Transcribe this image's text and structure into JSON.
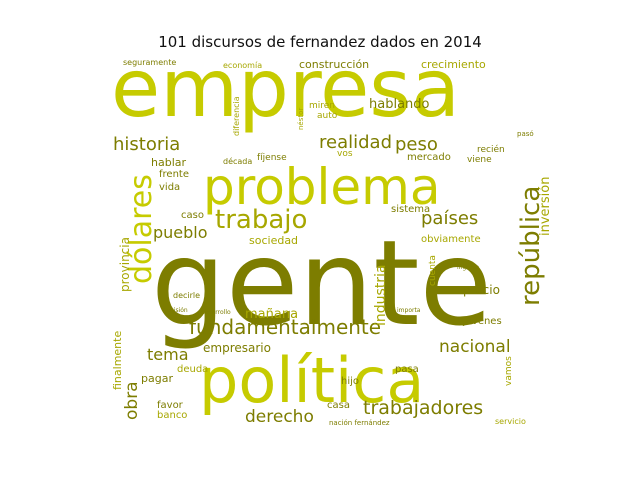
{
  "figure": {
    "title": "101 discursos de fernandez dados en 2014"
  },
  "palette": {
    "olive_dark": "#7d7d00",
    "olive": "#a7a700",
    "yellow_green": "#c6cb00",
    "light": "#d7d84a",
    "background": "#ffffff"
  },
  "chart_data": {
    "type": "wordcloud",
    "title": "101 discursos de fernandez dados en 2014",
    "words": [
      {
        "text": "gente",
        "weight": 100,
        "color": "#7d7d00"
      },
      {
        "text": "empresa",
        "weight": 70,
        "color": "#c6cb00"
      },
      {
        "text": "política",
        "weight": 55,
        "color": "#c6cb00"
      },
      {
        "text": "problema",
        "weight": 44,
        "color": "#c6cb00"
      },
      {
        "text": "dólares",
        "weight": 30,
        "color": "#c6cb00"
      },
      {
        "text": "república",
        "weight": 26,
        "color": "#7d7d00"
      },
      {
        "text": "trabajo",
        "weight": 24,
        "color": "#a7a700"
      },
      {
        "text": "fundamentalmente",
        "weight": 21,
        "color": "#7d7d00"
      },
      {
        "text": "trabajadores",
        "weight": 19,
        "color": "#7d7d00"
      },
      {
        "text": "historia",
        "weight": 18,
        "color": "#7d7d00"
      },
      {
        "text": "realidad",
        "weight": 17,
        "color": "#7d7d00"
      },
      {
        "text": "peso",
        "weight": 17,
        "color": "#7d7d00"
      },
      {
        "text": "países",
        "weight": 17,
        "color": "#7d7d00"
      },
      {
        "text": "nacional",
        "weight": 16,
        "color": "#7d7d00"
      },
      {
        "text": "derecho",
        "weight": 16,
        "color": "#7d7d00"
      },
      {
        "text": "obra",
        "weight": 16,
        "color": "#7d7d00"
      },
      {
        "text": "pueblo",
        "weight": 15,
        "color": "#7d7d00"
      },
      {
        "text": "tema",
        "weight": 15,
        "color": "#7d7d00"
      },
      {
        "text": "industria",
        "weight": 14,
        "color": "#a7a700"
      },
      {
        "text": "inversión",
        "weight": 13,
        "color": "#a7a700"
      },
      {
        "text": "hablando",
        "weight": 12,
        "color": "#7d7d00"
      },
      {
        "text": "mañana",
        "weight": 12,
        "color": "#a7a700"
      },
      {
        "text": "provincia",
        "weight": 12,
        "color": "#a7a700"
      },
      {
        "text": "empresario",
        "weight": 12,
        "color": "#7d7d00"
      },
      {
        "text": "precio",
        "weight": 11,
        "color": "#7d7d00"
      },
      {
        "text": "finalmente",
        "weight": 11,
        "color": "#a7a700"
      },
      {
        "text": "sociedad",
        "weight": 11,
        "color": "#a7a700"
      },
      {
        "text": "construcción",
        "weight": 11,
        "color": "#7d7d00"
      },
      {
        "text": "crecimiento",
        "weight": 11,
        "color": "#a7a700"
      },
      {
        "text": "hablar",
        "weight": 11,
        "color": "#7d7d00"
      },
      {
        "text": "pagar",
        "weight": 11,
        "color": "#7d7d00"
      },
      {
        "text": "mercado",
        "weight": 10,
        "color": "#7d7d00"
      },
      {
        "text": "sistema",
        "weight": 10,
        "color": "#7d7d00"
      },
      {
        "text": "jóvenes",
        "weight": 10,
        "color": "#7d7d00"
      },
      {
        "text": "favor",
        "weight": 10,
        "color": "#7d7d00"
      },
      {
        "text": "banco",
        "weight": 10,
        "color": "#a7a700"
      },
      {
        "text": "casa",
        "weight": 10,
        "color": "#7d7d00"
      },
      {
        "text": "hijo",
        "weight": 10,
        "color": "#7d7d00"
      },
      {
        "text": "pasa",
        "weight": 10,
        "color": "#7d7d00"
      },
      {
        "text": "vida",
        "weight": 10,
        "color": "#7d7d00"
      },
      {
        "text": "frente",
        "weight": 10,
        "color": "#7d7d00"
      },
      {
        "text": "caso",
        "weight": 10,
        "color": "#7d7d00"
      },
      {
        "text": "deuda",
        "weight": 10,
        "color": "#a7a700"
      },
      {
        "text": "obviamente",
        "weight": 10,
        "color": "#a7a700"
      },
      {
        "text": "fíjense",
        "weight": 9,
        "color": "#7d7d00"
      },
      {
        "text": "vos",
        "weight": 9,
        "color": "#a7a700"
      },
      {
        "text": "auto",
        "weight": 9,
        "color": "#a7a700"
      },
      {
        "text": "miren",
        "weight": 9,
        "color": "#a7a700"
      },
      {
        "text": "cuenta",
        "weight": 9,
        "color": "#a7a700"
      },
      {
        "text": "vamos",
        "weight": 9,
        "color": "#a7a700"
      },
      {
        "text": "recién",
        "weight": 9,
        "color": "#7d7d00"
      },
      {
        "text": "viene",
        "weight": 9,
        "color": "#7d7d00"
      },
      {
        "text": "economía",
        "weight": 8,
        "color": "#a7a700"
      },
      {
        "text": "seguramente",
        "weight": 8,
        "color": "#7d7d00"
      },
      {
        "text": "diferencia",
        "weight": 8,
        "color": "#a7a700"
      },
      {
        "text": "década",
        "weight": 8,
        "color": "#7d7d00"
      },
      {
        "text": "decirle",
        "weight": 8,
        "color": "#7d7d00"
      },
      {
        "text": "servicio",
        "weight": 8,
        "color": "#a7a700"
      },
      {
        "text": "nación fernández",
        "weight": 7,
        "color": "#7d7d00"
      },
      {
        "text": "néstor",
        "weight": 7,
        "color": "#a7a700"
      },
      {
        "text": "pasó",
        "weight": 7,
        "color": "#7d7d00"
      },
      {
        "text": "desarrollo",
        "weight": 6,
        "color": "#7d7d00"
      },
      {
        "text": "importa",
        "weight": 6,
        "color": "#7d7d00"
      },
      {
        "text": "ingreso",
        "weight": 6,
        "color": "#7d7d00"
      },
      {
        "text": "decisión",
        "weight": 6,
        "color": "#7d7d00"
      }
    ]
  }
}
